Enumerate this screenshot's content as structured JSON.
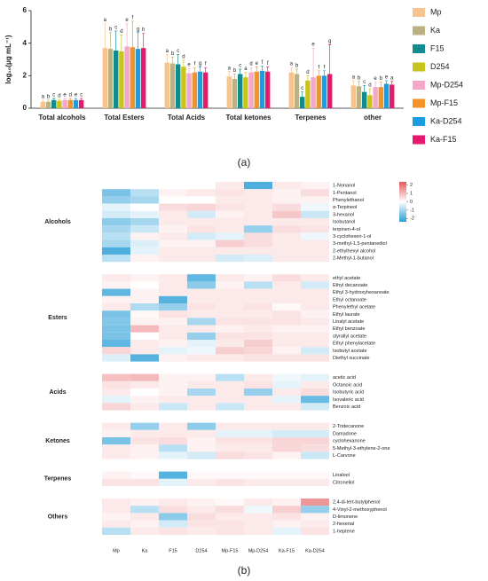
{
  "chart_data": [
    {
      "type": "bar",
      "panel": "(a)",
      "y_label": "log₁₀(μg mL⁻¹)",
      "categories": [
        "Total alcohols",
        "Total Esters",
        "Total Acids",
        "Total ketones",
        "Terpenes",
        "other"
      ],
      "ylim": [
        0,
        6
      ],
      "yticks": [
        0,
        2,
        4,
        6
      ],
      "series": [
        {
          "name": "Mp",
          "color": "#f5c48f",
          "values": [
            0.4,
            3.7,
            2.8,
            1.95,
            2.2,
            1.4
          ],
          "errors": [
            0.1,
            1.5,
            0.5,
            0.3,
            0.3,
            0.3
          ],
          "letters": [
            "a",
            "a",
            "a",
            "a",
            "a",
            "a"
          ]
        },
        {
          "name": "Ka",
          "color": "#bcb184",
          "values": [
            0.4,
            3.65,
            2.75,
            1.8,
            2.1,
            1.35
          ],
          "errors": [
            0.1,
            1.0,
            0.4,
            0.3,
            0.3,
            0.3
          ],
          "letters": [
            "b",
            "b",
            "b",
            "b",
            "b",
            "b"
          ]
        },
        {
          "name": "F15",
          "color": "#138a8e",
          "values": [
            0.5,
            3.55,
            2.7,
            2.1,
            0.7,
            1.0
          ],
          "errors": [
            0.1,
            1.2,
            0.6,
            0.3,
            0.3,
            0.4
          ],
          "letters": [
            "c",
            "c",
            "c",
            "c",
            "c",
            "c"
          ]
        },
        {
          "name": "D254",
          "color": "#c5c51d",
          "values": [
            0.45,
            3.5,
            2.55,
            1.9,
            1.7,
            0.8
          ],
          "errors": [
            0.1,
            1.0,
            0.4,
            0.3,
            0.3,
            0.4
          ],
          "letters": [
            "d",
            "d",
            "d",
            "a",
            "d",
            "d"
          ]
        },
        {
          "name": "Mp-D254",
          "color": "#f5a6cb",
          "values": [
            0.5,
            3.8,
            2.15,
            2.2,
            1.9,
            1.3
          ],
          "errors": [
            0.1,
            1.4,
            0.3,
            0.3,
            1.8,
            0.3
          ],
          "letters": [
            "e",
            "e",
            "e",
            "d",
            "e",
            "e"
          ]
        },
        {
          "name": "Mp-F15",
          "color": "#f39327",
          "values": [
            0.5,
            3.75,
            2.2,
            2.25,
            2.0,
            1.3
          ],
          "errors": [
            0.1,
            1.6,
            0.3,
            0.3,
            0.3,
            0.3
          ],
          "letters": [
            "d",
            "f",
            "f",
            "e",
            "f",
            "b"
          ]
        },
        {
          "name": "Ka-D254",
          "color": "#1b9de2",
          "values": [
            0.5,
            3.65,
            2.25,
            2.3,
            2.0,
            1.5
          ],
          "errors": [
            0.1,
            1.0,
            0.3,
            0.3,
            0.3,
            0.2
          ],
          "letters": [
            "e",
            "g",
            "g",
            "f",
            "f",
            "e"
          ]
        },
        {
          "name": "Ka-F15",
          "color": "#e6196f",
          "values": [
            0.5,
            3.7,
            2.2,
            2.25,
            2.1,
            1.45
          ],
          "errors": [
            0.1,
            0.9,
            0.3,
            0.3,
            1.8,
            0.2
          ],
          "letters": [
            "c",
            "h",
            "f",
            "f",
            "g",
            "a"
          ]
        }
      ]
    },
    {
      "type": "heatmap",
      "panel": "(b)",
      "columns": [
        "Mp",
        "Ka",
        "F15",
        "D254",
        "Mp-F15",
        "Mp-D254",
        "Ka-F15",
        "Ka-D254"
      ],
      "clim": [
        -2.4,
        2.4
      ],
      "colorbar_ticks": [
        2,
        1,
        0,
        -1,
        -2
      ],
      "colors": [
        "#2a9fd8",
        "#ffffff",
        "#e4585c"
      ],
      "groups": [
        {
          "name": "Alcohols",
          "rows": [
            {
              "name": "1-Nonanol",
              "values": [
                0,
                0,
                0,
                0,
                0.3,
                -2,
                0.3,
                0.2
              ]
            },
            {
              "name": "1-Pentanol",
              "values": [
                -1.5,
                -0.8,
                0.2,
                0.3,
                0.4,
                0.3,
                0.2,
                0.5
              ]
            },
            {
              "name": "Phenylethanol",
              "values": [
                -1.2,
                -1,
                0,
                0,
                0.3,
                0.3,
                0.2,
                0.2
              ]
            },
            {
              "name": "α-Terpineol",
              "values": [
                -0.3,
                0,
                0.5,
                0.6,
                0.4,
                0.3,
                0.5,
                -0.2
              ]
            },
            {
              "name": "3-hexanol",
              "values": [
                -0.5,
                -0.3,
                0.3,
                -0.5,
                0.2,
                0.3,
                0.8,
                -0.6
              ]
            },
            {
              "name": "Isobutanol",
              "values": [
                -1.3,
                -1,
                0.3,
                0.3,
                0.3,
                0.3,
                0.3,
                0.3
              ]
            },
            {
              "name": "terpinen-4-ol",
              "values": [
                -1,
                -0.6,
                0.2,
                0.4,
                0.3,
                -1.2,
                0.5,
                0.4
              ]
            },
            {
              "name": "3-cyclohexen-1-ol",
              "values": [
                -0.8,
                0.2,
                0.3,
                -0.5,
                -0.3,
                0.5,
                0.3,
                -0.2
              ]
            },
            {
              "name": "3-methyl-1,5-pentanediol",
              "values": [
                -1,
                -0.4,
                0.2,
                0.2,
                0.7,
                0.5,
                0.3,
                0.3
              ]
            },
            {
              "name": "2-ethylhexyl alcohol",
              "values": [
                -2,
                -0.3,
                0.3,
                0.3,
                0.3,
                0.3,
                0.3,
                0.3
              ]
            },
            {
              "name": "2-Methyl-1-butanol",
              "values": [
                -0.8,
                0.2,
                0.3,
                0.3,
                -0.5,
                -0.4,
                0.3,
                0.3
              ]
            }
          ]
        },
        {
          "name": "Esters",
          "rows": [
            {
              "name": "ethyl acetate",
              "values": [
                0.3,
                0.2,
                0.3,
                -1.8,
                0.3,
                0.2,
                0.5,
                0.3
              ]
            },
            {
              "name": "Ethyl decanoate",
              "values": [
                0.2,
                0,
                0.3,
                -1.3,
                0.2,
                -0.8,
                0.3,
                -0.5
              ]
            },
            {
              "name": "Ethyl 3-hydroxyhexanoate",
              "values": [
                -1.8,
                0.2,
                0.3,
                0.3,
                0.3,
                0.3,
                0.3,
                0.3
              ]
            },
            {
              "name": "Ethyl octanoate",
              "values": [
                0.2,
                0.2,
                -1.9,
                0.3,
                0.3,
                0.3,
                0.3,
                0.3
              ]
            },
            {
              "name": "Phenylethyl acetate",
              "values": [
                0.3,
                -0.9,
                -1.2,
                0.4,
                0.3,
                0.4,
                0.1,
                0.3
              ]
            },
            {
              "name": "Ethyl laurate",
              "values": [
                -1.5,
                0.1,
                0.4,
                0.3,
                0.3,
                0.3,
                0.4,
                0.2
              ]
            },
            {
              "name": "Linalyl acetate",
              "values": [
                -1.4,
                0.2,
                0.2,
                -1,
                0.4,
                0.4,
                0.4,
                0.3
              ]
            },
            {
              "name": "Ethyl benzoate",
              "values": [
                -1.5,
                1,
                0.3,
                0.3,
                0.2,
                0.3,
                0.2,
                0.2
              ]
            },
            {
              "name": "styrallyl acetate",
              "values": [
                -1.5,
                0,
                0.3,
                -1.2,
                0.4,
                0.4,
                0.3,
                0.3
              ]
            },
            {
              "name": "Ethyl phenylacetate",
              "values": [
                -1.8,
                0.3,
                0.2,
                -0.3,
                0.3,
                0.7,
                0.3,
                0.3
              ]
            },
            {
              "name": "Isobutyl acetate",
              "values": [
                0.6,
                0.3,
                -0.3,
                -0.2,
                0.7,
                0.6,
                0.2,
                -0.5
              ]
            },
            {
              "name": "Diethyl succinate",
              "values": [
                -0.4,
                -1.9,
                0.2,
                0.3,
                0.3,
                0.4,
                0.4,
                0.4
              ]
            }
          ]
        },
        {
          "name": "Acids",
          "rows": [
            {
              "name": "acetic acid",
              "values": [
                0.9,
                1,
                0.2,
                0.2,
                -0.8,
                0.3,
                -0.2,
                -0.3
              ]
            },
            {
              "name": "Octanoic acid",
              "values": [
                0.4,
                0.3,
                0.2,
                0.3,
                0.3,
                0.4,
                -0.3,
                0.3
              ]
            },
            {
              "name": "Isobutyric acid",
              "values": [
                0.3,
                0,
                0.2,
                -1,
                0.3,
                -1.2,
                0.3,
                0.5
              ]
            },
            {
              "name": "Isovaleric acid",
              "values": [
                -0.3,
                0.2,
                0.3,
                0.3,
                0.3,
                0.3,
                -0.3,
                -1.7
              ]
            },
            {
              "name": "Benzoic acid",
              "values": [
                0.6,
                0.3,
                -0.6,
                0.3,
                -0.6,
                0.3,
                0.3,
                -0.5
              ]
            }
          ]
        },
        {
          "name": "Ketones",
          "rows": [
            {
              "name": "2-Tridecanone",
              "values": [
                0.3,
                -1.2,
                0.3,
                -1.3,
                0.3,
                0.3,
                0.3,
                0.3
              ]
            },
            {
              "name": "Damadone",
              "values": [
                0.2,
                0.3,
                0.3,
                0.3,
                -0.3,
                -0.3,
                -0.5,
                -0.5
              ]
            },
            {
              "name": "cyclohexanone",
              "values": [
                -1.5,
                0.4,
                0.5,
                0.2,
                0.4,
                0.4,
                0.6,
                0.6
              ]
            },
            {
              "name": "5-Methyl-3-ethylene-2-one",
              "values": [
                0.3,
                0.2,
                -0.8,
                0.2,
                0.3,
                0.3,
                0.6,
                0.5
              ]
            },
            {
              "name": "L-Carvone",
              "values": [
                0.3,
                0.2,
                -0.3,
                -0.5,
                0.5,
                0.4,
                0.2,
                -0.6
              ]
            }
          ]
        },
        {
          "name": "Terpenes",
          "rows": [
            {
              "name": "Linalool",
              "values": [
                0.2,
                0.1,
                -1.9,
                0.1,
                0.1,
                0.1,
                0.1,
                0.1
              ]
            },
            {
              "name": "Citronellol",
              "values": [
                0.4,
                0.4,
                -0.3,
                0.3,
                0.4,
                0.3,
                0.3,
                0.3
              ]
            }
          ]
        },
        {
          "name": "Others",
          "rows": [
            {
              "name": "2,4-di-tert-butylphenol",
              "values": [
                0.3,
                0.2,
                0.3,
                0.2,
                0.1,
                0.3,
                0.2,
                1.5
              ]
            },
            {
              "name": "4-Vinyl-2-methoxyphenol",
              "values": [
                0.3,
                -0.8,
                0.5,
                0.3,
                0.5,
                -0.2,
                0.7,
                -1.2
              ]
            },
            {
              "name": "D-limonene",
              "values": [
                0.2,
                0.3,
                -1.3,
                0.5,
                0.3,
                0.3,
                0.4,
                0.2
              ]
            },
            {
              "name": "2-hexenal",
              "values": [
                0.3,
                0.2,
                -0.5,
                0.4,
                0.4,
                0.3,
                0.2,
                0.3
              ]
            },
            {
              "name": "1-heptene",
              "values": [
                -0.8,
                0.3,
                0.4,
                0.3,
                0.4,
                0.3,
                -0.3,
                0.4
              ]
            }
          ]
        }
      ]
    }
  ]
}
